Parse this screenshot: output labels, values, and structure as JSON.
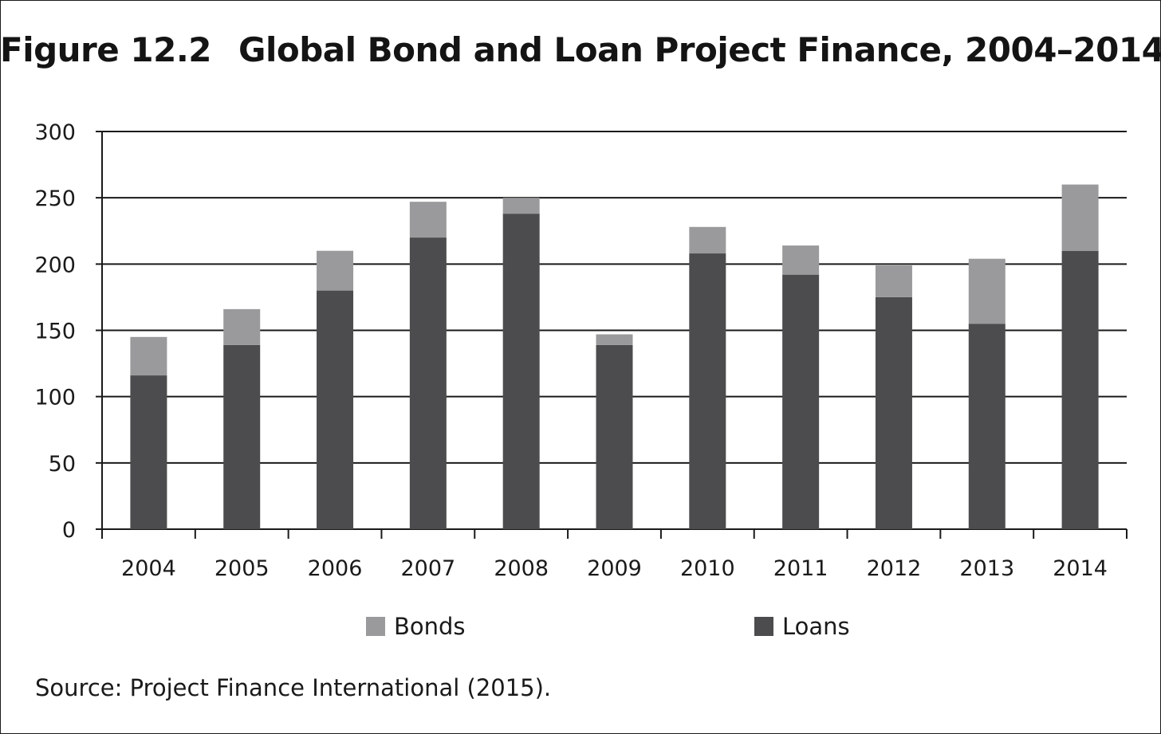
{
  "title": {
    "figure_label": "Figure 12.2",
    "text": "Global Bond and Loan Project Finance, 2004–2014"
  },
  "source": "Source: Project Finance International (2015).",
  "colors": {
    "bonds": "#9a9a9c",
    "loans": "#4c4c4e",
    "axis": "#1a1a1a"
  },
  "chart_data": {
    "type": "bar",
    "stacked": true,
    "categories": [
      "2004",
      "2005",
      "2006",
      "2007",
      "2008",
      "2009",
      "2010",
      "2011",
      "2012",
      "2013",
      "2014"
    ],
    "series": [
      {
        "name": "Loans",
        "values": [
          116,
          139,
          180,
          220,
          238,
          139,
          208,
          192,
          175,
          155,
          210
        ]
      },
      {
        "name": "Bonds",
        "values": [
          29,
          27,
          30,
          27,
          12,
          8,
          20,
          22,
          24,
          49,
          50
        ]
      }
    ],
    "ylim": [
      0,
      300
    ],
    "yticks": [
      "0",
      "50",
      "100",
      "150",
      "200",
      "250",
      "300"
    ],
    "grid": true,
    "legend_position": "bottom",
    "legend": [
      "Bonds",
      "Loans"
    ]
  }
}
